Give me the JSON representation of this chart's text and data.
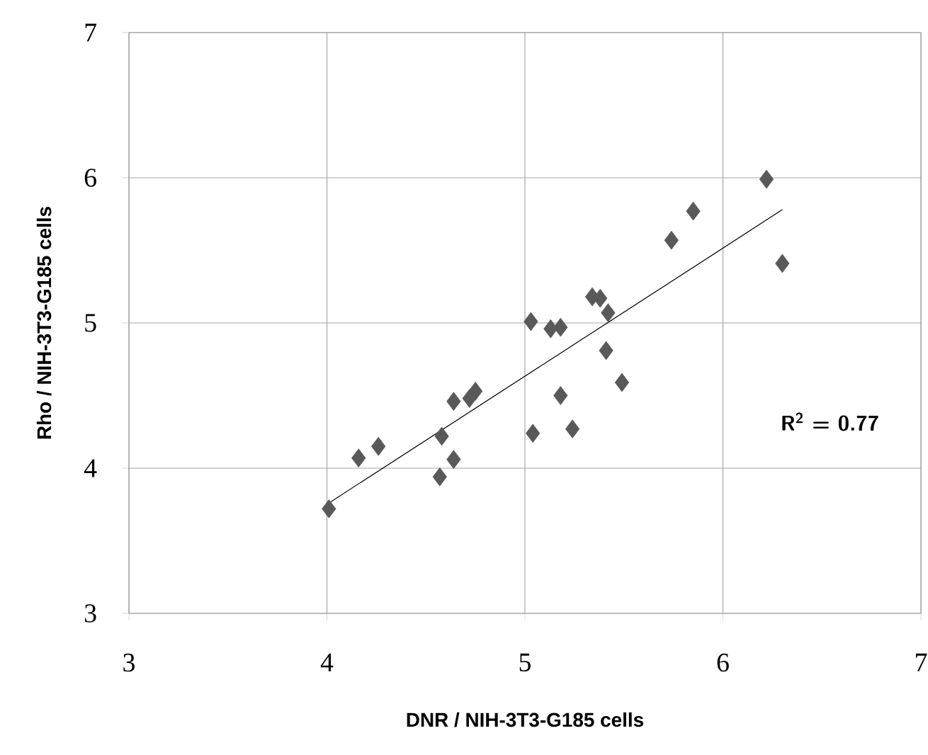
{
  "chart_data": {
    "type": "scatter",
    "xlabel": "DNR / NIH-3T3-G185 cells",
    "ylabel": "Rho / NIH-3T3-G185 cells",
    "xlim": [
      3,
      7
    ],
    "ylim": [
      3,
      7
    ],
    "xticks": [
      3,
      4,
      5,
      6,
      7
    ],
    "yticks": [
      3,
      4,
      5,
      6,
      7
    ],
    "grid": true,
    "annotations": [
      "R$^{2}$ = 0.77"
    ],
    "series": [
      {
        "marker": "diamond",
        "color": "#595959",
        "x": [
          4.01,
          4.16,
          4.26,
          4.57,
          4.58,
          4.64,
          4.64,
          4.72,
          4.75,
          5.03,
          5.04,
          5.13,
          5.18,
          5.18,
          5.24,
          5.34,
          5.38,
          5.42,
          5.41,
          5.49,
          5.74,
          5.85,
          6.22,
          6.3
        ],
        "values": [
          3.72,
          4.07,
          4.15,
          3.94,
          4.22,
          4.06,
          4.46,
          4.48,
          4.53,
          5.01,
          4.24,
          4.96,
          4.97,
          4.5,
          4.27,
          5.18,
          5.17,
          5.07,
          4.81,
          4.59,
          5.57,
          5.77,
          5.99,
          5.41
        ]
      },
      {
        "type": "line",
        "marker": "none",
        "color": "#000000",
        "x": [
          4.01,
          6.3
        ],
        "values": [
          3.76,
          5.78
        ]
      }
    ]
  }
}
